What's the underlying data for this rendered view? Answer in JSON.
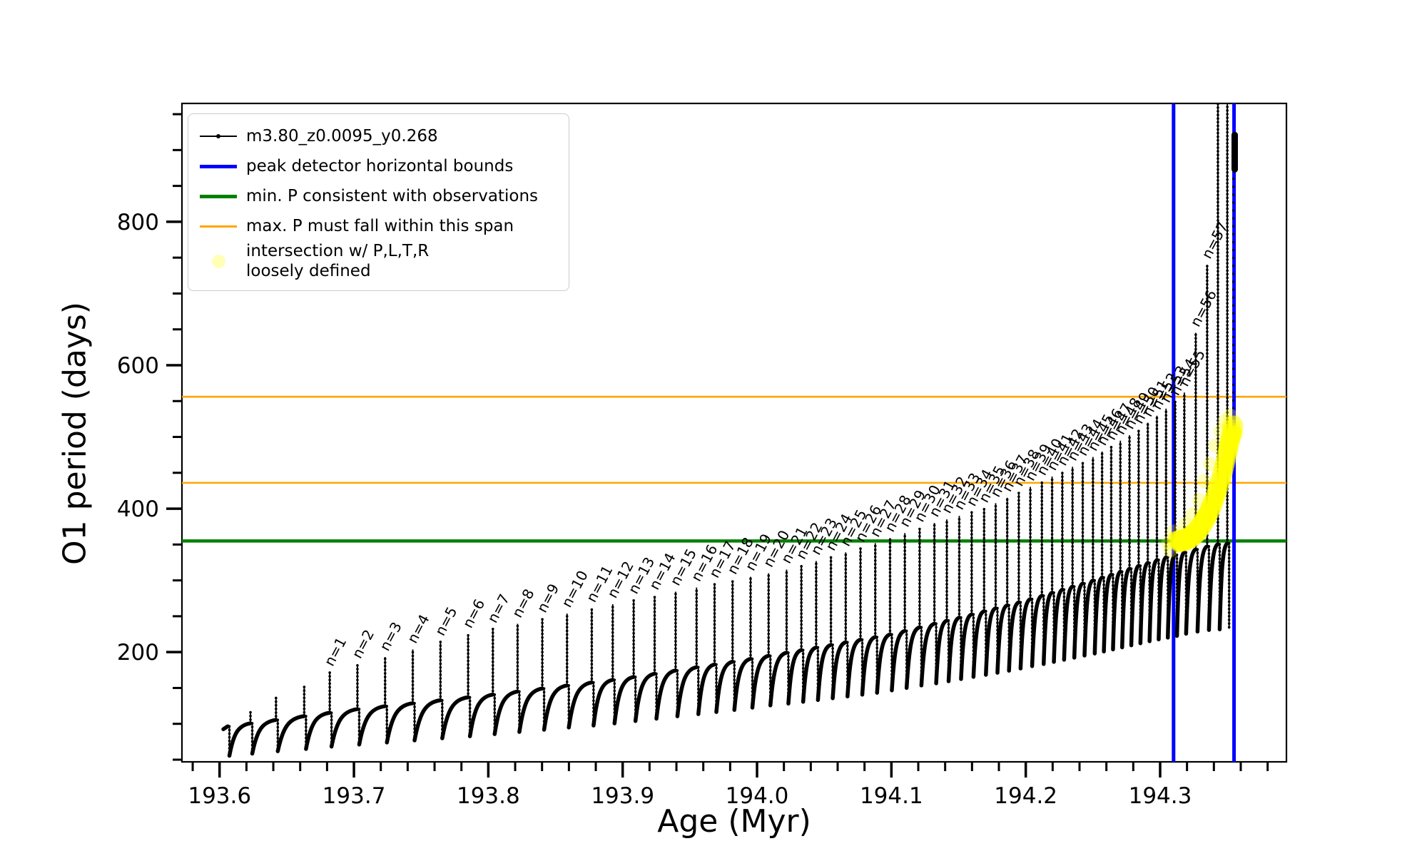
{
  "figure": {
    "xlabel": "Age (Myr)",
    "ylabel": "O1 period (days)"
  },
  "legend": {
    "entries": [
      {
        "label": "m3.80_z0.0095_y0.268",
        "type": "line-marker",
        "color": "#000000",
        "lw": 2
      },
      {
        "label": "peak detector horizontal bounds",
        "type": "line",
        "color": "#0000ff",
        "lw": 5
      },
      {
        "label": "min. P consistent with observations",
        "type": "line",
        "color": "#008000",
        "lw": 5
      },
      {
        "label": "max. P must fall within this span",
        "type": "line",
        "color": "#ffa500",
        "lw": 3
      },
      {
        "label": "intersection w/ P,L,T,R\nloosely defined",
        "type": "marker",
        "color": "rgba(255,255,0,0.28)"
      }
    ]
  },
  "chart_data": {
    "type": "line",
    "title": "",
    "xlabel": "Age (Myr)",
    "ylabel": "O1 period (days)",
    "xlim": [
      193.572,
      194.394
    ],
    "ylim": [
      47,
      965
    ],
    "x_major_ticks": [
      193.6,
      193.7,
      193.8,
      193.9,
      194.0,
      194.1,
      194.2,
      194.3
    ],
    "x_minor_step": 0.02,
    "y_major_ticks": [
      200,
      400,
      600,
      800
    ],
    "y_minor_step": 50,
    "grid": false,
    "legend_position": "upper left",
    "series_label": "m3.80_z0.0095_y0.268",
    "series_color": "#000000",
    "peak_detector_bounds_age": [
      194.31,
      194.355
    ],
    "peak_detector_color": "#0000ff",
    "min_P_consistent": 355,
    "min_P_color": "#008000",
    "max_P_span": [
      436,
      556
    ],
    "max_P_color": "#ffa500",
    "pulses": {
      "count": 63,
      "first_labeled_index": 5,
      "last_labeled_n": 57,
      "label_prefix": "n=",
      "spike_age_anchors": [
        [
          1,
          193.606
        ],
        [
          2,
          193.623
        ],
        [
          3,
          193.642
        ],
        [
          4,
          193.663
        ],
        [
          5,
          193.682
        ],
        [
          10,
          193.785
        ],
        [
          15,
          193.877
        ],
        [
          20,
          193.955
        ],
        [
          25,
          194.022
        ],
        [
          30,
          194.077
        ],
        [
          35,
          194.132
        ],
        [
          39,
          194.169
        ],
        [
          44,
          194.212
        ],
        [
          49,
          194.25
        ],
        [
          54,
          194.284
        ],
        [
          59,
          194.318
        ],
        [
          61,
          194.335
        ],
        [
          62,
          194.343
        ],
        [
          63,
          194.35
        ]
      ],
      "spike_top_anchors": [
        [
          193.606,
          98
        ],
        [
          193.623,
          117
        ],
        [
          193.642,
          137
        ],
        [
          193.663,
          153
        ],
        [
          193.682,
          172
        ],
        [
          193.785,
          225
        ],
        [
          193.877,
          261
        ],
        [
          193.955,
          290
        ],
        [
          194.022,
          315
        ],
        [
          194.077,
          345
        ],
        [
          194.132,
          380
        ],
        [
          194.169,
          400
        ],
        [
          194.212,
          438
        ],
        [
          194.25,
          472
        ],
        [
          194.284,
          510
        ],
        [
          194.311,
          549
        ],
        [
          194.318,
          562
        ],
        [
          194.327,
          650
        ],
        [
          194.335,
          740
        ]
      ],
      "clipped_spike_top": 985,
      "plateau_anchors": [
        [
          193.6,
          95
        ],
        [
          193.7,
          120
        ],
        [
          193.8,
          140
        ],
        [
          193.9,
          163
        ],
        [
          194.0,
          192
        ],
        [
          194.1,
          225
        ],
        [
          194.15,
          248
        ],
        [
          194.2,
          272
        ],
        [
          194.25,
          300
        ],
        [
          194.3,
          330
        ],
        [
          194.34,
          350
        ],
        [
          194.36,
          353
        ]
      ],
      "dip_fraction_anchors": [
        [
          193.6,
          0.55
        ],
        [
          194.0,
          0.63
        ],
        [
          194.35,
          0.66
        ]
      ],
      "end_cluster": {
        "age": 194.3555,
        "period_range": [
          873,
          921
        ]
      }
    },
    "intersection_blob": {
      "points": [
        [
          194.312,
          356
        ],
        [
          194.317,
          358
        ],
        [
          194.322,
          362
        ],
        [
          194.327,
          370
        ],
        [
          194.331,
          381
        ],
        [
          194.335,
          394
        ],
        [
          194.339,
          410
        ],
        [
          194.343,
          432
        ],
        [
          194.347,
          458
        ],
        [
          194.35,
          482
        ],
        [
          194.352,
          500
        ],
        [
          194.354,
          515
        ]
      ],
      "outliers": [
        [
          194.306,
          352
        ],
        [
          194.31,
          368
        ],
        [
          194.314,
          350
        ],
        [
          194.308,
          342
        ],
        [
          194.315,
          361
        ],
        [
          194.319,
          378
        ],
        [
          194.324,
          392
        ],
        [
          194.329,
          412
        ],
        [
          194.333,
          438
        ],
        [
          194.337,
          462
        ],
        [
          194.341,
          488
        ],
        [
          194.345,
          508
        ],
        [
          194.348,
          522
        ],
        [
          194.352,
          530
        ],
        [
          194.3555,
          520
        ],
        [
          194.357,
          505
        ]
      ],
      "radius": 13,
      "color": "rgba(255,255,0,0.5)",
      "outlier_color": "rgba(255,255,0,0.28)"
    }
  }
}
